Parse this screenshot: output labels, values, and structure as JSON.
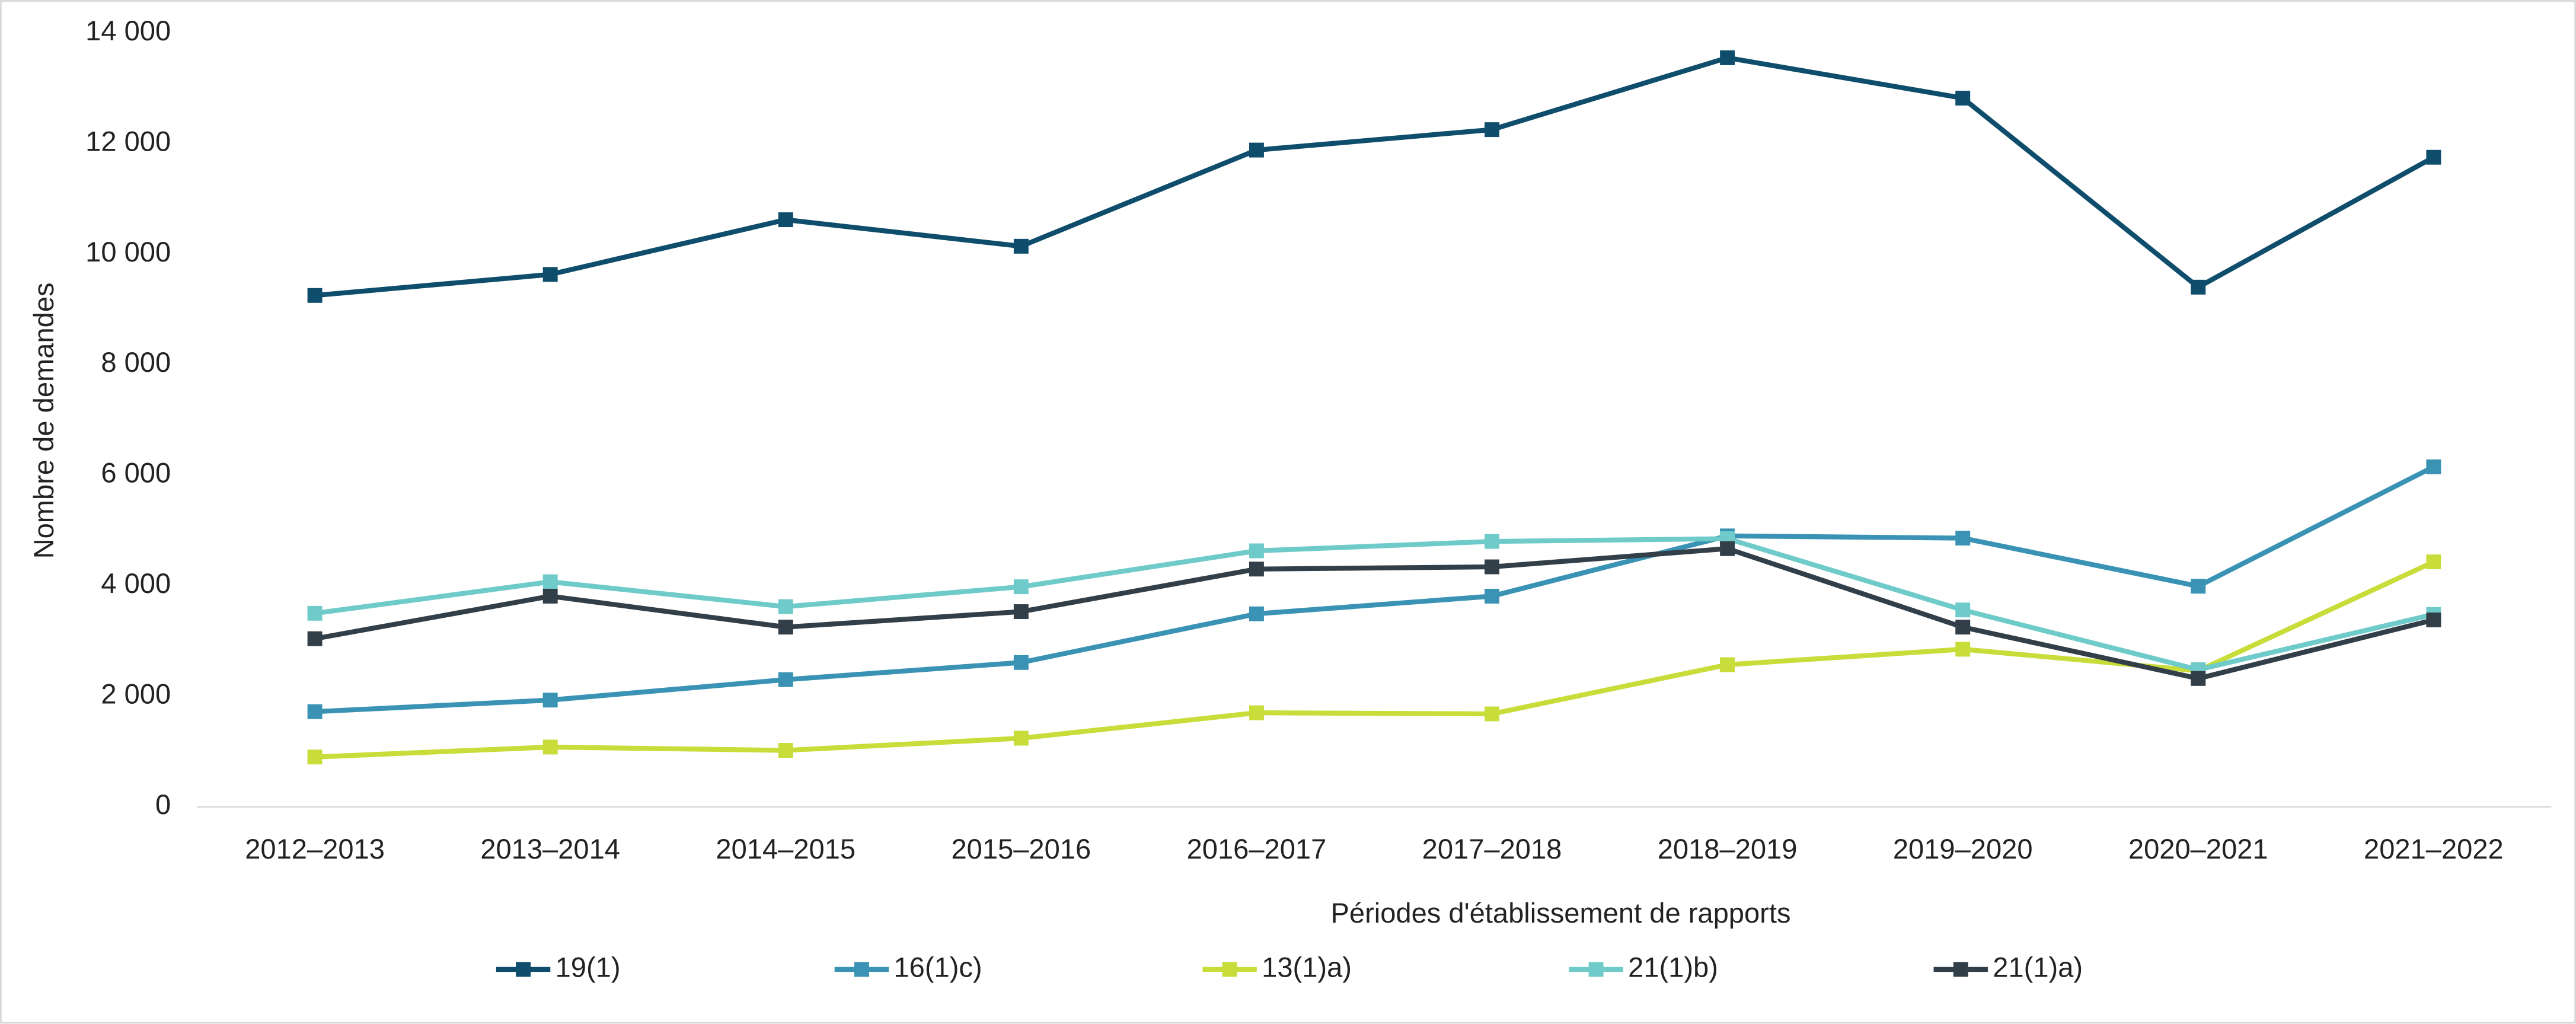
{
  "chart_data": {
    "type": "line",
    "x_label": "Périodes d'établissement de rapports",
    "y_label": "Nombre de demandes",
    "categories": [
      "2012–2013",
      "2013–2014",
      "2014–2015",
      "2015–2016",
      "2016–2017",
      "2017–2018",
      "2018–2019",
      "2019–2020",
      "2020–2021",
      "2021–2022"
    ],
    "series": [
      {
        "name": "19(1)",
        "color": "#0e4d6b",
        "values": [
          9250,
          9630,
          10620,
          10140,
          11880,
          12250,
          13550,
          12820,
          9400,
          11750
        ]
      },
      {
        "name": "16(1)c)",
        "color": "#3a93b4",
        "values": [
          1720,
          1930,
          2300,
          2610,
          3490,
          3810,
          4900,
          4860,
          3990,
          6150
        ]
      },
      {
        "name": "13(1)a)",
        "color": "#c8dc3a",
        "values": [
          900,
          1080,
          1020,
          1240,
          1700,
          1680,
          2570,
          2850,
          2460,
          4430
        ]
      },
      {
        "name": "21(1)b)",
        "color": "#6fcbca",
        "values": [
          3500,
          4070,
          3620,
          3980,
          4630,
          4800,
          4850,
          3560,
          2480,
          3480
        ]
      },
      {
        "name": "21(1)a)",
        "color": "#333f48",
        "values": [
          3040,
          3810,
          3250,
          3530,
          4300,
          4340,
          4670,
          3250,
          2320,
          3380
        ]
      }
    ],
    "ylim": [
      0,
      14000
    ],
    "yticks": [
      0,
      {
        "value": 2000,
        "label": "2 000"
      },
      {
        "value": 4000,
        "label": "4 000"
      },
      {
        "value": 6000,
        "label": "6 000"
      },
      {
        "value": 8000,
        "label": "8 000"
      },
      {
        "value": 10000,
        "label": "10 000"
      },
      {
        "value": 12000,
        "label": "12 000"
      },
      {
        "value": 14000,
        "label": "14 000"
      }
    ],
    "legend": "bottom"
  }
}
